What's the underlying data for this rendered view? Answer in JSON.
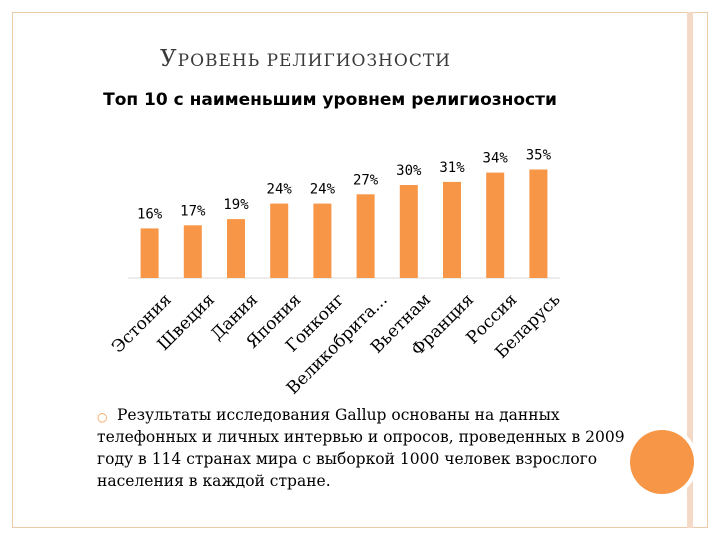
{
  "slide": {
    "title_first": "У",
    "title_rest": "РОВЕНЬ РЕЛИГИОЗНОСТИ",
    "bullet_icon": "circle-bullet-icon",
    "body_text": "Результаты исследования Gallup основаны на данных телефонных и личных интервью и опросов, проведенных в 2009 году в 114 странах мира с выборкой 1000 человек взрослого населения в каждой стране."
  },
  "colors": {
    "bar": "#f79646",
    "frame": "#e8c9a8",
    "accent": "#f79646"
  },
  "chart_data": {
    "type": "bar",
    "title": "Топ 10 с наименьшим уровнем религиозности",
    "xlabel": "",
    "ylabel": "",
    "categories": [
      "Эстония",
      "Швеция",
      "Дания",
      "Япония",
      "Гонконг",
      "Великобрита...",
      "Вьетнам",
      "Франция",
      "Россия",
      "Беларусь"
    ],
    "values": [
      16,
      17,
      19,
      24,
      24,
      27,
      30,
      31,
      34,
      35
    ],
    "data_labels": [
      "16%",
      "17%",
      "19%",
      "24%",
      "24%",
      "27%",
      "30%",
      "31%",
      "34%",
      "35%"
    ],
    "unit": "%",
    "ylim": [
      0,
      40
    ],
    "grid": false,
    "legend": "none"
  }
}
